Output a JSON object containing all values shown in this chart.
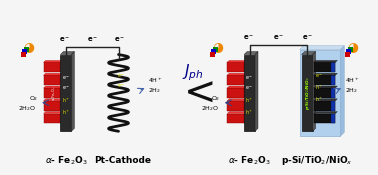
{
  "bg_color": "#f5f5f5",
  "hematite_color": "#cc1111",
  "electrode_dark": "#2a2a2a",
  "electrode_gray": "#4a4a4a",
  "pt_wire_color": "#111111",
  "psi_bg": "#aaccee",
  "psi_nanorod": "#0a0a0a",
  "psi_nanorod_tip": "#1133aa",
  "yellow_label": "#dddd00",
  "arrow_color": "#334499",
  "jph_color": "#00008B",
  "wire_color": "#222222",
  "label_color": "#000000",
  "sun_color": "#ee8800",
  "light_colors": [
    "#008800",
    "#0000cc",
    "#cc0000",
    "#eeee00"
  ],
  "label_fe2o3": "α- Fe$_2$O$_3$",
  "label_pt": "Pt-Cathode",
  "label_psi": "p-Si/TiO$_2$/NiO$_x$"
}
